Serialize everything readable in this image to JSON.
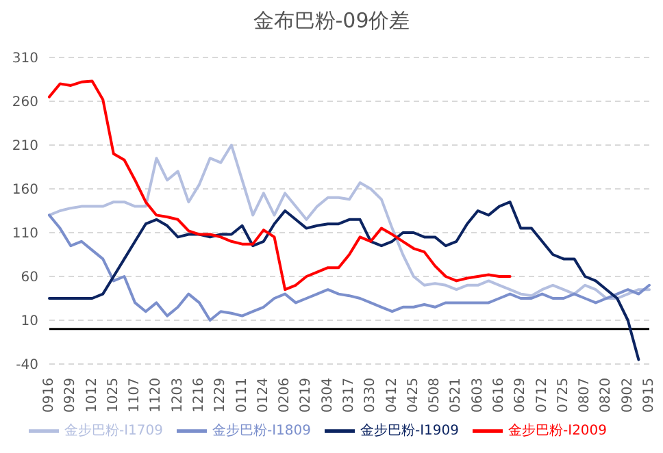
{
  "chart_data": {
    "type": "line",
    "title": "金布巴粉-09价差",
    "categories": [
      "0916",
      null,
      "0929",
      null,
      "1012",
      null,
      "1025",
      null,
      "1107",
      null,
      "1120",
      null,
      "1203",
      null,
      "1216",
      null,
      "1229",
      null,
      "0111",
      null,
      "0124",
      null,
      "0206",
      null,
      "0219",
      null,
      "0304",
      null,
      "0317",
      null,
      "0330",
      null,
      "0412",
      null,
      "0425",
      null,
      "0508",
      null,
      "0521",
      null,
      "0603",
      null,
      "0616",
      null,
      "0629",
      null,
      "0712",
      null,
      "0725",
      null,
      "0807",
      null,
      "0820",
      null,
      "0902",
      null,
      "0915"
    ],
    "series": [
      {
        "name": "金步巴粉-I1709",
        "color": "#b4bfe0",
        "values": [
          130,
          135,
          138,
          140,
          140,
          140,
          145,
          145,
          140,
          140,
          195,
          170,
          180,
          145,
          165,
          195,
          190,
          210,
          170,
          130,
          155,
          130,
          155,
          140,
          125,
          140,
          150,
          150,
          148,
          167,
          160,
          148,
          115,
          85,
          60,
          50,
          52,
          50,
          45,
          50,
          50,
          55,
          50,
          45,
          40,
          38,
          45,
          50,
          45,
          40,
          50,
          45,
          35,
          35,
          40,
          45,
          45
        ]
      },
      {
        "name": "金步巴粉-I1809",
        "color": "#7b8fcc",
        "values": [
          130,
          115,
          95,
          100,
          90,
          80,
          55,
          60,
          30,
          20,
          30,
          15,
          25,
          40,
          30,
          10,
          20,
          18,
          15,
          20,
          25,
          35,
          40,
          30,
          35,
          40,
          45,
          40,
          38,
          35,
          30,
          25,
          20,
          25,
          25,
          28,
          25,
          30,
          30,
          30,
          30,
          30,
          35,
          40,
          35,
          35,
          40,
          35,
          35,
          40,
          35,
          30,
          35,
          40,
          45,
          40,
          50
        ]
      },
      {
        "name": "金步巴粉-I1909",
        "color": "#0c2461",
        "values": [
          35,
          35,
          35,
          35,
          35,
          40,
          60,
          80,
          100,
          120,
          125,
          118,
          105,
          108,
          108,
          105,
          108,
          108,
          118,
          95,
          100,
          120,
          135,
          125,
          115,
          118,
          120,
          120,
          125,
          125,
          100,
          95,
          100,
          110,
          110,
          105,
          105,
          95,
          100,
          120,
          135,
          130,
          140,
          145,
          115,
          115,
          100,
          85,
          80,
          80,
          60,
          55,
          45,
          35,
          10,
          -35,
          null
        ]
      },
      {
        "name": "金步巴粉-I2009",
        "color": "#ff0000",
        "values": [
          265,
          280,
          278,
          282,
          283,
          262,
          200,
          193,
          170,
          145,
          130,
          128,
          125,
          112,
          108,
          108,
          105,
          100,
          97,
          97,
          113,
          105,
          45,
          50,
          60,
          65,
          70,
          70,
          85,
          105,
          100,
          115,
          108,
          100,
          92,
          88,
          72,
          60,
          55,
          58,
          60,
          62,
          60,
          60,
          null,
          null,
          null,
          null,
          null,
          null,
          null,
          null,
          null,
          null,
          null,
          null,
          null
        ]
      }
    ],
    "ylim": [
      -40,
      310
    ],
    "yticks": [
      -40,
      10,
      60,
      110,
      160,
      210,
      260,
      310
    ],
    "grid": "y",
    "legend": "bottom",
    "ref_lines": [
      {
        "axis": "y",
        "value": 0,
        "color": "#000000"
      }
    ]
  }
}
